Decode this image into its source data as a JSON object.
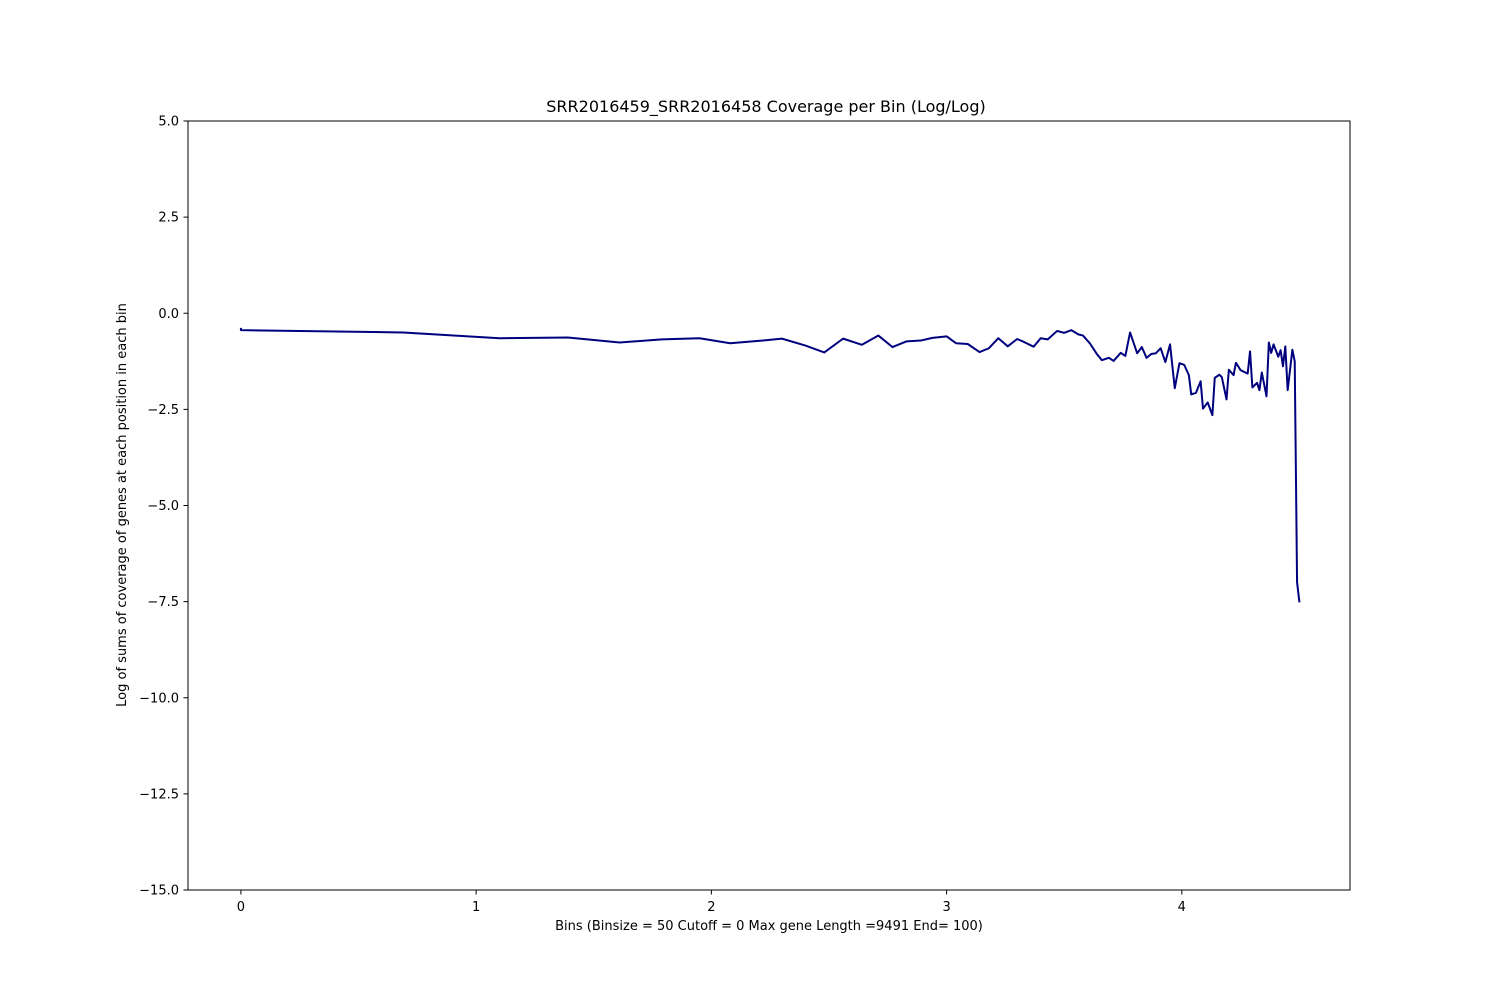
{
  "chart_data": {
    "type": "line",
    "title": "SRR2016459_SRR2016458 Coverage per Bin (Log/Log)",
    "xlabel": "Bins  (Binsize = 50 Cutoff = 0 Max gene Length =9491 End= 100)",
    "ylabel": "Log of sums of coverage of genes at each position in each bin",
    "xlim": [
      -0.225,
      4.715
    ],
    "ylim": [
      -15.0,
      5.0
    ],
    "xticks": [
      0,
      1,
      2,
      3,
      4
    ],
    "xtick_labels": [
      "0",
      "1",
      "2",
      "3",
      "4"
    ],
    "yticks": [
      5.0,
      2.5,
      0.0,
      -2.5,
      -5.0,
      -7.5,
      -10.0,
      -12.5,
      -15.0
    ],
    "ytick_labels": [
      "5.0",
      "2.5",
      "0.0",
      "−2.5",
      "−5.0",
      "−7.5",
      "−10.0",
      "−12.5",
      "−15.0"
    ],
    "grid": false,
    "line_color": "#00007f",
    "series": [
      {
        "x": [
          0,
          0,
          0.69,
          1.1,
          1.39,
          1.61,
          1.79,
          1.95,
          2.08,
          2.2,
          2.3,
          2.4,
          2.48,
          2.56,
          2.64,
          2.71,
          2.77,
          2.83,
          2.89,
          2.94,
          3.0,
          3.04,
          3.09,
          3.14,
          3.18,
          3.22,
          3.26,
          3.3,
          3.33,
          3.37,
          3.4,
          3.43,
          3.47,
          3.5,
          3.53,
          3.56,
          3.58,
          3.61,
          3.64,
          3.66,
          3.69,
          3.71,
          3.74,
          3.76,
          3.78,
          3.81,
          3.83,
          3.85,
          3.87,
          3.89,
          3.91,
          3.93,
          3.95,
          3.97,
          3.99,
          4.01,
          4.03,
          4.04,
          4.06,
          4.08,
          4.09,
          4.11,
          4.13,
          4.14,
          4.16,
          4.17,
          4.19,
          4.2,
          4.22,
          4.23,
          4.25,
          4.26,
          4.28,
          4.29,
          4.3,
          4.32,
          4.33,
          4.34,
          4.36,
          4.37,
          4.38,
          4.39,
          4.41,
          4.42,
          4.43,
          4.44,
          4.45,
          4.47,
          4.48,
          4.49,
          4.5
        ],
        "y": [
          -0.38,
          -0.44,
          -0.5,
          -0.65,
          -0.63,
          -0.76,
          -0.68,
          -0.65,
          -0.78,
          -0.72,
          -0.66,
          -0.84,
          -1.02,
          -0.66,
          -0.82,
          -0.58,
          -0.88,
          -0.73,
          -0.71,
          -0.64,
          -0.6,
          -0.78,
          -0.8,
          -1.01,
          -0.91,
          -0.65,
          -0.86,
          -0.67,
          -0.75,
          -0.87,
          -0.65,
          -0.68,
          -0.46,
          -0.51,
          -0.44,
          -0.55,
          -0.58,
          -0.79,
          -1.07,
          -1.22,
          -1.16,
          -1.24,
          -1.03,
          -1.11,
          -0.5,
          -1.04,
          -0.88,
          -1.16,
          -1.06,
          -1.04,
          -0.91,
          -1.27,
          -0.81,
          -1.95,
          -1.3,
          -1.34,
          -1.61,
          -2.11,
          -2.07,
          -1.77,
          -2.48,
          -2.32,
          -2.65,
          -1.68,
          -1.6,
          -1.66,
          -2.24,
          -1.47,
          -1.61,
          -1.29,
          -1.48,
          -1.51,
          -1.57,
          -0.99,
          -1.93,
          -1.81,
          -2.0,
          -1.54,
          -2.16,
          -0.76,
          -1.03,
          -0.81,
          -1.13,
          -0.96,
          -1.38,
          -0.86,
          -2.0,
          -0.95,
          -1.25,
          -7.0,
          -7.52
        ]
      }
    ]
  }
}
